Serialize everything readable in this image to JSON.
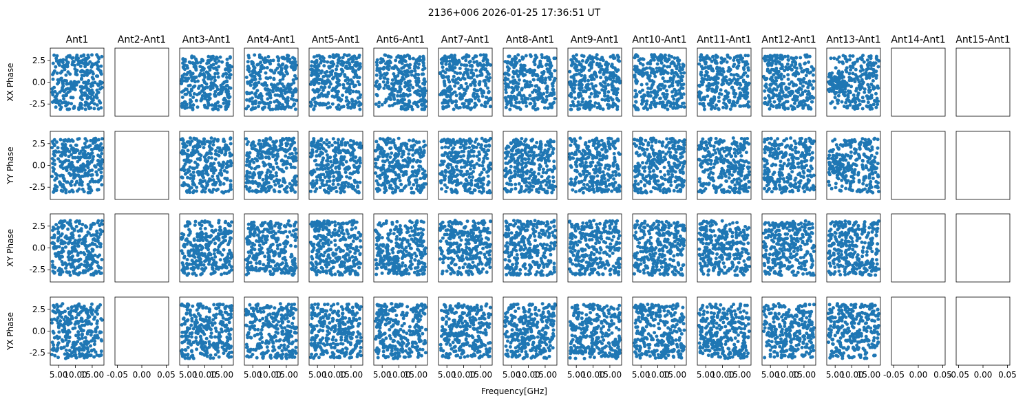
{
  "title": "2136+006 2026-01-25 17:36:51 UT",
  "chart_data": {
    "type": "scatter",
    "title": "2136+006 2026-01-25 17:36:51 UT",
    "xlabel": "Frequency[GHz]",
    "columns": [
      "Ant1",
      "Ant2-Ant1",
      "Ant3-Ant1",
      "Ant4-Ant1",
      "Ant5-Ant1",
      "Ant6-Ant1",
      "Ant7-Ant1",
      "Ant8-Ant1",
      "Ant9-Ant1",
      "Ant10-Ant1",
      "Ant11-Ant1",
      "Ant12-Ant1",
      "Ant13-Ant1",
      "Ant14-Ant1",
      "Ant15-Ant1"
    ],
    "rows": [
      "XX Phase",
      "YY Phase",
      "XY Phase",
      "YX Phase"
    ],
    "ylim": [
      -3.9,
      3.9
    ],
    "yticks": [
      "2.5",
      "0.0",
      "-2.5"
    ],
    "yticks_values": [
      2.5,
      0.0,
      -2.5
    ],
    "xlim_data": [
      2.5,
      18.5
    ],
    "xticks_data": [
      "5.00",
      "10.00",
      "15.00"
    ],
    "xticks_data_values": [
      5.0,
      10.0,
      15.0
    ],
    "xlim_empty": [
      -0.055,
      0.055
    ],
    "xticks_empty": [
      "-0.05",
      "0.00",
      "0.05"
    ],
    "xticks_empty_values": [
      -0.05,
      0.0,
      0.05
    ],
    "frequency_range_ghz": [
      3.0,
      18.0
    ],
    "phase_range": [
      -3.14,
      3.14
    ],
    "points_per_panel": 300,
    "empty_columns": [
      1,
      13,
      14
    ],
    "empty_panels": [
      [
        2,
        14
      ]
    ],
    "ant2_ylim_blank": true,
    "marker_color": "#1f77b4",
    "marker_size": 5
  }
}
